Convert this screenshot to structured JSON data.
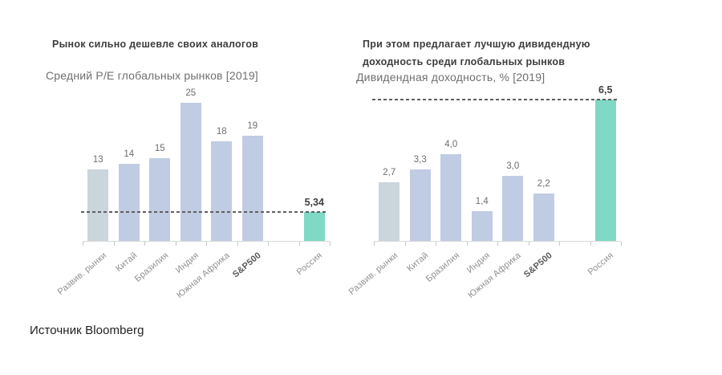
{
  "page": {
    "background": "#ffffff",
    "source_note": "Источник Bloomberg"
  },
  "chart_data": [
    {
      "type": "bar",
      "heading_lines": [
        "Рынок сильно дешевле своих аналогов"
      ],
      "title": "Средний P/E глобальных рынков [2019]",
      "categories": [
        "Развив. рынки",
        "Китай",
        "Бразилия",
        "Индия",
        "Южная Африка",
        "S&P500",
        "Россия"
      ],
      "values": [
        13,
        14,
        15,
        25,
        18,
        19,
        5.34
      ],
      "value_labels": [
        "13",
        "14",
        "15",
        "25",
        "18",
        "19",
        "5,34"
      ],
      "ylim": [
        0,
        26
      ],
      "grid": false,
      "legend": "none",
      "highlight_index": 6,
      "muted_index": 0,
      "bold_category_index": 5,
      "gap_slot_before_highlight": true,
      "reference_line": {
        "value": 5.34,
        "style": "dashed",
        "color": "#5f5f5f"
      },
      "colors": {
        "bar_default": "#c0cce3",
        "bar_muted": "#cad5dc",
        "bar_highlight": "#7fd9c5",
        "value_label": "#6e6e6e",
        "value_label_highlight": "#3f3f3f",
        "category_label": "#8f8f8f",
        "category_label_bold": "#595959",
        "axis_line": "#d9d9d9",
        "tick": "#c6c6c6"
      }
    },
    {
      "type": "bar",
      "heading_lines": [
        "При этом предлагает лучшую дивидендную",
        "доходность среди глобальных рынков"
      ],
      "title": "Дивидендная доходность, % [2019]",
      "categories": [
        "Развив. рынки",
        "Китай",
        "Бразилия",
        "Индия",
        "Южная Африка",
        "S&P500",
        "Россия"
      ],
      "values": [
        2.7,
        3.3,
        4.0,
        1.4,
        3.0,
        2.2,
        6.5
      ],
      "value_labels": [
        "2,7",
        "3,3",
        "4,0",
        "1,4",
        "3,0",
        "2,2",
        "6,5"
      ],
      "ylim": [
        0,
        6.6
      ],
      "grid": false,
      "legend": "none",
      "highlight_index": 6,
      "muted_index": 0,
      "bold_category_index": 5,
      "gap_slot_before_highlight": true,
      "reference_line": {
        "value": 6.5,
        "style": "dashed",
        "color": "#5f5f5f"
      },
      "colors": {
        "bar_default": "#c0cce3",
        "bar_muted": "#cad5dc",
        "bar_highlight": "#7fd9c5",
        "value_label": "#6e6e6e",
        "value_label_highlight": "#3f3f3f",
        "category_label": "#8f8f8f",
        "category_label_bold": "#595959",
        "axis_line": "#d9d9d9",
        "tick": "#c6c6c6"
      }
    }
  ]
}
